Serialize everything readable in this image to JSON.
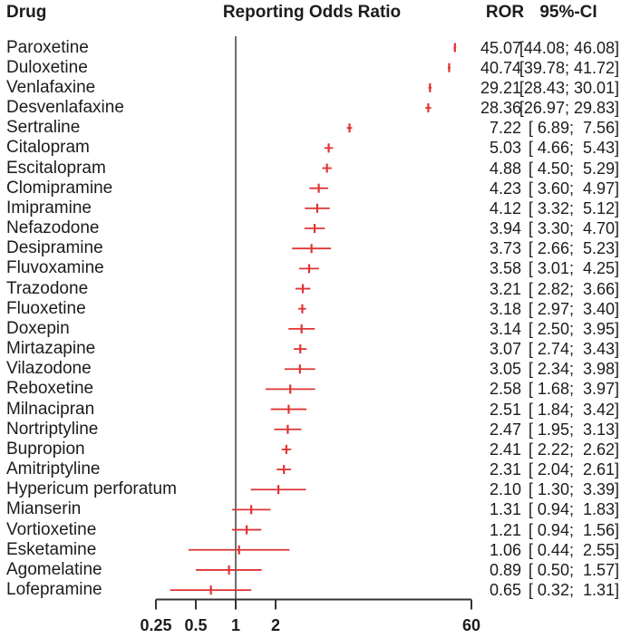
{
  "header": {
    "drug": "Drug",
    "plot": "Reporting Odds Ratio",
    "ror": "ROR",
    "ci": "95%-CI"
  },
  "colors": {
    "marker": "#df3434",
    "axis": "#333333",
    "ref_line": "#4a4a4a",
    "text": "#1c1c1c"
  },
  "chart_data": {
    "type": "forest",
    "x_scale": "log",
    "xlabel": "Reporting Odds Ratio",
    "xlim": [
      0.25,
      60
    ],
    "ref_line": 1,
    "grid": false,
    "x_ticks": [
      {
        "value": 0.25,
        "label": "0.25"
      },
      {
        "value": 0.5,
        "label": "0.5"
      },
      {
        "value": 1,
        "label": "1"
      },
      {
        "value": 2,
        "label": "2"
      },
      {
        "value": 60,
        "label": "60"
      }
    ],
    "rows": [
      {
        "drug": "Paroxetine",
        "ror": 45.07,
        "ci_low": 44.08,
        "ci_high": 46.08,
        "ror_text": "45.07",
        "ci_text": "[44.08; 46.08]"
      },
      {
        "drug": "Duloxetine",
        "ror": 40.74,
        "ci_low": 39.78,
        "ci_high": 41.72,
        "ror_text": "40.74",
        "ci_text": "[39.78; 41.72]"
      },
      {
        "drug": "Venlafaxine",
        "ror": 29.21,
        "ci_low": 28.43,
        "ci_high": 30.01,
        "ror_text": "29.21",
        "ci_text": "[28.43; 30.01]"
      },
      {
        "drug": "Desvenlafaxine",
        "ror": 28.36,
        "ci_low": 26.97,
        "ci_high": 29.83,
        "ror_text": "28.36",
        "ci_text": "[26.97; 29.83]"
      },
      {
        "drug": "Sertraline",
        "ror": 7.22,
        "ci_low": 6.89,
        "ci_high": 7.56,
        "ror_text": "7.22",
        "ci_text": "[ 6.89;  7.56]"
      },
      {
        "drug": "Citalopram",
        "ror": 5.03,
        "ci_low": 4.66,
        "ci_high": 5.43,
        "ror_text": "5.03",
        "ci_text": "[ 4.66;  5.43]"
      },
      {
        "drug": "Escitalopram",
        "ror": 4.88,
        "ci_low": 4.5,
        "ci_high": 5.29,
        "ror_text": "4.88",
        "ci_text": "[ 4.50;  5.29]"
      },
      {
        "drug": "Clomipramine",
        "ror": 4.23,
        "ci_low": 3.6,
        "ci_high": 4.97,
        "ror_text": "4.23",
        "ci_text": "[ 3.60;  4.97]"
      },
      {
        "drug": "Imipramine",
        "ror": 4.12,
        "ci_low": 3.32,
        "ci_high": 5.12,
        "ror_text": "4.12",
        "ci_text": "[ 3.32;  5.12]"
      },
      {
        "drug": "Nefazodone",
        "ror": 3.94,
        "ci_low": 3.3,
        "ci_high": 4.7,
        "ror_text": "3.94",
        "ci_text": "[ 3.30;  4.70]"
      },
      {
        "drug": "Desipramine",
        "ror": 3.73,
        "ci_low": 2.66,
        "ci_high": 5.23,
        "ror_text": "3.73",
        "ci_text": "[ 2.66;  5.23]"
      },
      {
        "drug": "Fluvoxamine",
        "ror": 3.58,
        "ci_low": 3.01,
        "ci_high": 4.25,
        "ror_text": "3.58",
        "ci_text": "[ 3.01;  4.25]"
      },
      {
        "drug": "Trazodone",
        "ror": 3.21,
        "ci_low": 2.82,
        "ci_high": 3.66,
        "ror_text": "3.21",
        "ci_text": "[ 2.82;  3.66]"
      },
      {
        "drug": "Fluoxetine",
        "ror": 3.18,
        "ci_low": 2.97,
        "ci_high": 3.4,
        "ror_text": "3.18",
        "ci_text": "[ 2.97;  3.40]"
      },
      {
        "drug": "Doxepin",
        "ror": 3.14,
        "ci_low": 2.5,
        "ci_high": 3.95,
        "ror_text": "3.14",
        "ci_text": "[ 2.50;  3.95]"
      },
      {
        "drug": "Mirtazapine",
        "ror": 3.07,
        "ci_low": 2.74,
        "ci_high": 3.43,
        "ror_text": "3.07",
        "ci_text": "[ 2.74;  3.43]"
      },
      {
        "drug": "Vilazodone",
        "ror": 3.05,
        "ci_low": 2.34,
        "ci_high": 3.98,
        "ror_text": "3.05",
        "ci_text": "[ 2.34;  3.98]"
      },
      {
        "drug": "Reboxetine",
        "ror": 2.58,
        "ci_low": 1.68,
        "ci_high": 3.97,
        "ror_text": "2.58",
        "ci_text": "[ 1.68;  3.97]"
      },
      {
        "drug": "Milnacipran",
        "ror": 2.51,
        "ci_low": 1.84,
        "ci_high": 3.42,
        "ror_text": "2.51",
        "ci_text": "[ 1.84;  3.42]"
      },
      {
        "drug": "Nortriptyline",
        "ror": 2.47,
        "ci_low": 1.95,
        "ci_high": 3.13,
        "ror_text": "2.47",
        "ci_text": "[ 1.95;  3.13]"
      },
      {
        "drug": "Bupropion",
        "ror": 2.41,
        "ci_low": 2.22,
        "ci_high": 2.62,
        "ror_text": "2.41",
        "ci_text": "[ 2.22;  2.62]"
      },
      {
        "drug": "Amitriptyline",
        "ror": 2.31,
        "ci_low": 2.04,
        "ci_high": 2.61,
        "ror_text": "2.31",
        "ci_text": "[ 2.04;  2.61]"
      },
      {
        "drug": "Hypericum perforatum",
        "ror": 2.1,
        "ci_low": 1.3,
        "ci_high": 3.39,
        "ror_text": "2.10",
        "ci_text": "[ 1.30;  3.39]"
      },
      {
        "drug": "Mianserin",
        "ror": 1.31,
        "ci_low": 0.94,
        "ci_high": 1.83,
        "ror_text": "1.31",
        "ci_text": "[ 0.94;  1.83]"
      },
      {
        "drug": "Vortioxetine",
        "ror": 1.21,
        "ci_low": 0.94,
        "ci_high": 1.56,
        "ror_text": "1.21",
        "ci_text": "[ 0.94;  1.56]"
      },
      {
        "drug": "Esketamine",
        "ror": 1.06,
        "ci_low": 0.44,
        "ci_high": 2.55,
        "ror_text": "1.06",
        "ci_text": "[ 0.44;  2.55]"
      },
      {
        "drug": "Agomelatine",
        "ror": 0.89,
        "ci_low": 0.5,
        "ci_high": 1.57,
        "ror_text": "0.89",
        "ci_text": "[ 0.50;  1.57]"
      },
      {
        "drug": "Lofepramine",
        "ror": 0.65,
        "ci_low": 0.32,
        "ci_high": 1.31,
        "ror_text": "0.65",
        "ci_text": "[ 0.32;  1.31]"
      }
    ]
  }
}
